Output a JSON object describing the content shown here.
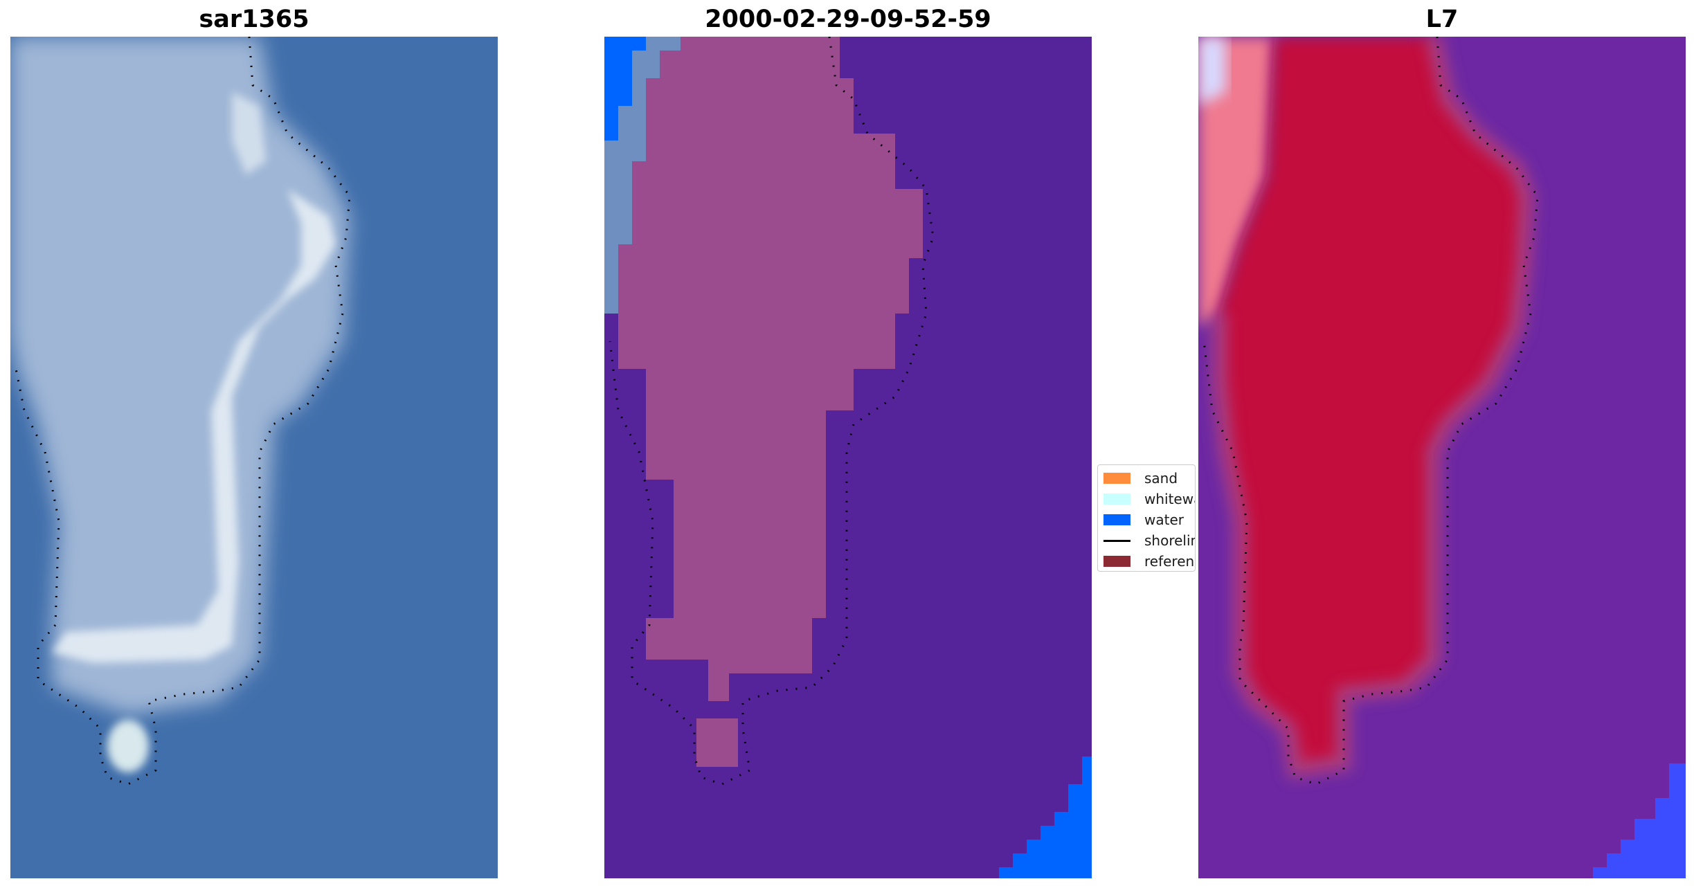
{
  "panels": [
    {
      "title": "sar1365"
    },
    {
      "title": "2000-02-29-09-52-59"
    },
    {
      "title": "L7"
    }
  ],
  "legend": {
    "items": [
      {
        "label": "sand",
        "color": "#ff8c3c",
        "kind": "patch"
      },
      {
        "label": "whitewater",
        "color": "#c8ffff",
        "kind": "patch"
      },
      {
        "label": "water",
        "color": "#0064ff",
        "kind": "patch"
      },
      {
        "label": "shoreline",
        "color": "#000000",
        "kind": "line"
      },
      {
        "label": "reference",
        "color": "#8b2a32",
        "kind": "patch"
      }
    ]
  },
  "colors": {
    "rgb_water": "#3f6fae",
    "rgb_land": "#c9d7ea",
    "class_background": "#55249a",
    "class_land": "#9a4a8e",
    "class_water": "#0064ff",
    "ndwi_land": "#c4103c",
    "ndwi_background": "#6a259e",
    "ndwi_water": "#3c4cff"
  }
}
